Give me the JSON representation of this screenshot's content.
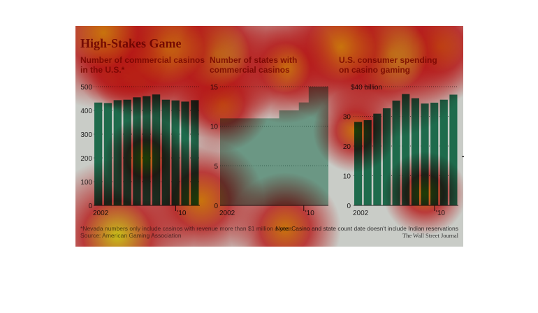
{
  "figure": {
    "title": "High-Stakes Game",
    "footnote": "*Nevada numbers only include casinos with revenue more than $1 million a year.",
    "source": "Source: American Gaming Association",
    "note": "Note: Casino and state count date doesn't include Indian reservations",
    "credit": "The Wall Street Journal"
  },
  "colors": {
    "bar": "#1e6b4c",
    "background": "#c9ccc7",
    "title": "#7a1a12",
    "subtitle": "#8a2a12",
    "heat_hot": "#ffee20",
    "heat_warm": "#ff9010",
    "heat_red": "#e61c1c"
  },
  "chart_data": [
    {
      "type": "bar",
      "title": "Number of commercial casinos in the U.S.*",
      "title_lines": [
        "Number of commercial casinos",
        "in the U.S.*"
      ],
      "categories": [
        2002,
        2003,
        2004,
        2005,
        2006,
        2007,
        2008,
        2009,
        2010,
        2011,
        2012
      ],
      "values": [
        433,
        431,
        443,
        445,
        455,
        460,
        467,
        445,
        442,
        437,
        443
      ],
      "ylim": [
        0,
        500
      ],
      "yticks": [
        "0",
        "100",
        "200",
        "300",
        "400",
        "500"
      ],
      "xtick_labels": [
        "2002",
        "'10"
      ],
      "grid": true
    },
    {
      "type": "area",
      "title": "Number of states with commercial casinos",
      "title_lines": [
        "Number of states with",
        "commercial casinos"
      ],
      "categories": [
        2002,
        2003,
        2004,
        2005,
        2006,
        2007,
        2008,
        2009,
        2010,
        2011,
        2012
      ],
      "values": [
        11,
        11,
        11,
        11,
        11,
        11,
        12,
        12,
        13,
        15,
        15
      ],
      "ylim": [
        0,
        15
      ],
      "yticks": [
        "0",
        "5",
        "10",
        "15"
      ],
      "xtick_labels": [
        "2002",
        "'10"
      ],
      "grid": true
    },
    {
      "type": "bar",
      "title": "U.S. consumer spending on casino gaming",
      "title_lines": [
        "U.S. consumer spending",
        "on casino gaming"
      ],
      "categories": [
        2002,
        2003,
        2004,
        2005,
        2006,
        2007,
        2008,
        2009,
        2010,
        2011,
        2012
      ],
      "values": [
        28.1,
        28.7,
        30.9,
        32.7,
        35.3,
        37.5,
        36.1,
        34.3,
        34.6,
        35.6,
        37.3
      ],
      "ylim": [
        0,
        40
      ],
      "yticks": [
        "0",
        "10",
        "20",
        "30",
        "$40 billion"
      ],
      "xtick_labels": [
        "2002",
        "'10"
      ],
      "grid": true
    }
  ]
}
